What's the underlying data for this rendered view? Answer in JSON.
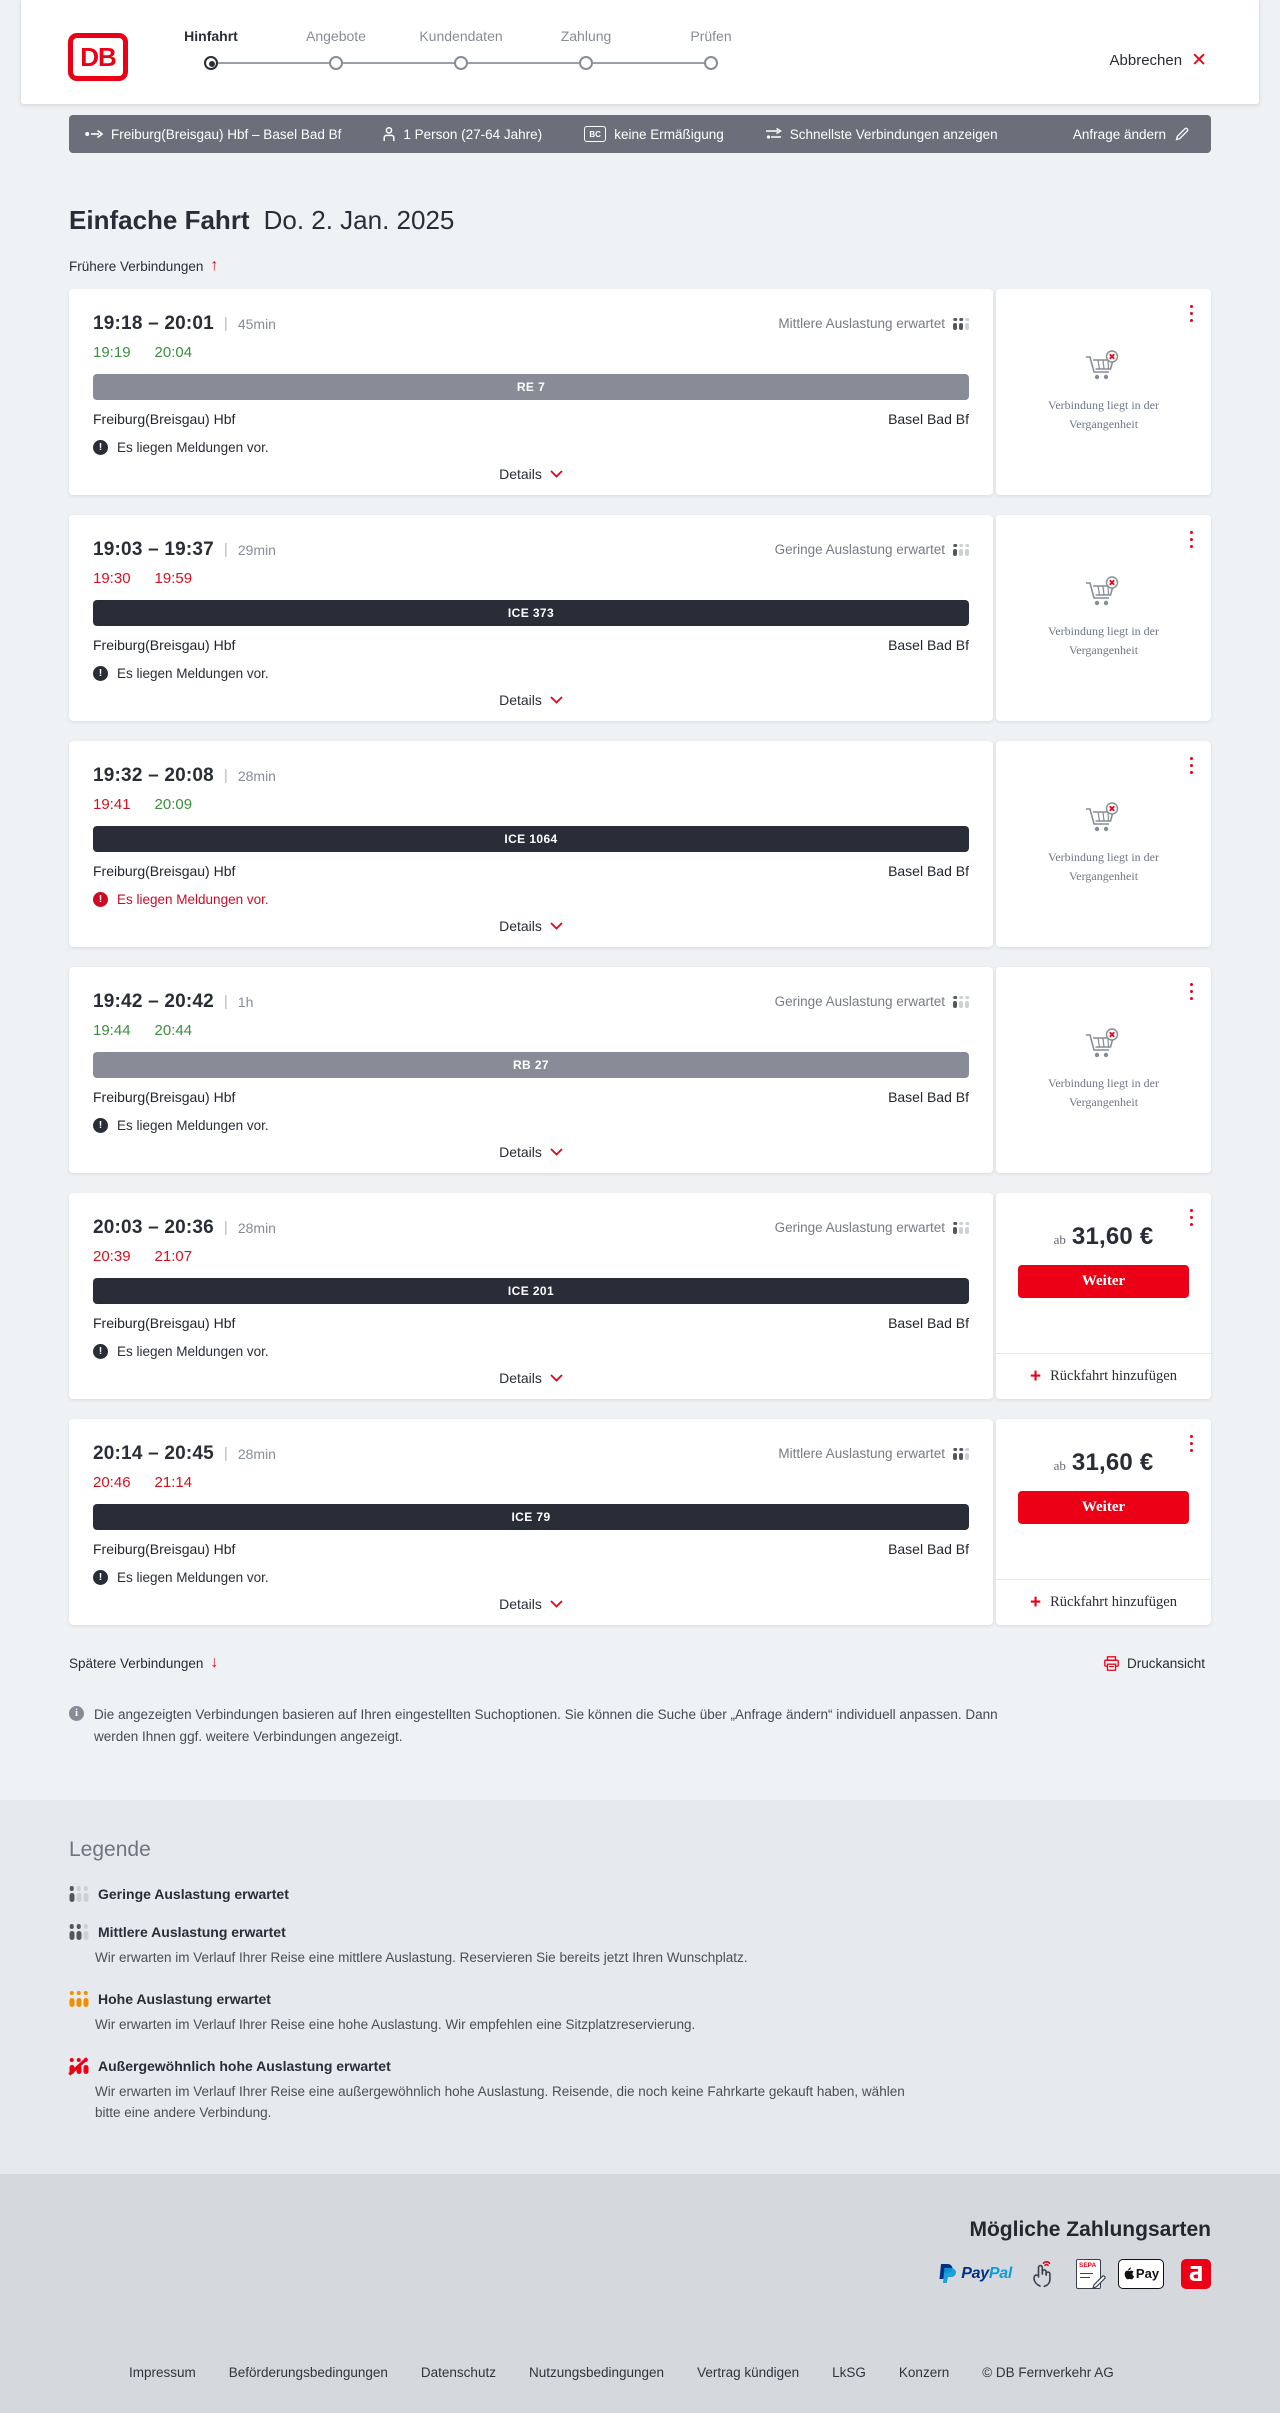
{
  "colors": {
    "brand_red": "#ec0016",
    "dark": "#282d37",
    "gray": "#878c96",
    "green": "#3b8f3e",
    "bar_regional": "#878c96",
    "bar_ice": "#282d37",
    "summary_bar": "#6a6f7a"
  },
  "header": {
    "logo": "DB",
    "steps": [
      {
        "label": "Hinfahrt",
        "active": true
      },
      {
        "label": "Angebote",
        "active": false
      },
      {
        "label": "Kundendaten",
        "active": false
      },
      {
        "label": "Zahlung",
        "active": false
      },
      {
        "label": "Prüfen",
        "active": false
      }
    ],
    "cancel": "Abbrechen"
  },
  "summary": {
    "route": "Freiburg(Breisgau) Hbf – Basel Bad Bf",
    "passengers": "1 Person (27-64 Jahre)",
    "discount": "keine Ermäßigung",
    "view": "Schnellste Verbindungen anzeigen",
    "edit": "Anfrage ändern"
  },
  "results": {
    "title": "Einfache Fahrt",
    "date": "Do. 2. Jan. 2025",
    "earlier": "Frühere Verbindungen",
    "later": "Spätere Verbindungen",
    "print": "Druckansicht",
    "note": "Die angezeigten Verbindungen basieren auf Ihren eingestellten Suchoptionen. Sie können die Suche über „Anfrage ändern“ individuell anpassen. Dann werden Ihnen ggf. weitere Verbindungen angezeigt."
  },
  "connections": [
    {
      "planned": "19:18 – 20:01",
      "duration": "45min",
      "occupancy": "Mittlere Auslastung erwartet",
      "occupancy_level": "medium",
      "dep": "19:19",
      "dep_status": "ontime",
      "arr": "20:04",
      "arr_status": "ontime",
      "train": "RE 7",
      "train_style": "regional",
      "from": "Freiburg(Breisgau) Hbf",
      "to": "Basel Bad Bf",
      "message": "Es liegen Meldungen vor.",
      "message_style": "dark",
      "details": "Details",
      "side": {
        "type": "past",
        "text": "Verbindung liegt in der Vergangenheit"
      }
    },
    {
      "planned": "19:03 – 19:37",
      "duration": "29min",
      "occupancy": "Geringe Auslastung erwartet",
      "occupancy_level": "low",
      "dep": "19:30",
      "dep_status": "delay",
      "arr": "19:59",
      "arr_status": "delay",
      "train": "ICE 373",
      "train_style": "ice",
      "from": "Freiburg(Breisgau) Hbf",
      "to": "Basel Bad Bf",
      "message": "Es liegen Meldungen vor.",
      "message_style": "dark",
      "details": "Details",
      "side": {
        "type": "past",
        "text": "Verbindung liegt in der Vergangenheit"
      }
    },
    {
      "planned": "19:32 – 20:08",
      "duration": "28min",
      "occupancy": "",
      "occupancy_level": "",
      "dep": "19:41",
      "dep_status": "delay",
      "arr": "20:09",
      "arr_status": "ontime",
      "train": "ICE 1064",
      "train_style": "ice",
      "from": "Freiburg(Breisgau) Hbf",
      "to": "Basel Bad Bf",
      "message": "Es liegen Meldungen vor.",
      "message_style": "red",
      "details": "Details",
      "side": {
        "type": "past",
        "text": "Verbindung liegt in der Vergangenheit"
      }
    },
    {
      "planned": "19:42 – 20:42",
      "duration": "1h",
      "occupancy": "Geringe Auslastung erwartet",
      "occupancy_level": "low",
      "dep": "19:44",
      "dep_status": "ontime",
      "arr": "20:44",
      "arr_status": "ontime",
      "train": "RB 27",
      "train_style": "regional",
      "from": "Freiburg(Breisgau) Hbf",
      "to": "Basel Bad Bf",
      "message": "Es liegen Meldungen vor.",
      "message_style": "dark",
      "details": "Details",
      "side": {
        "type": "past",
        "text": "Verbindung liegt in der Vergangenheit"
      }
    },
    {
      "planned": "20:03 – 20:36",
      "duration": "28min",
      "occupancy": "Geringe Auslastung erwartet",
      "occupancy_level": "low",
      "dep": "20:39",
      "dep_status": "delay",
      "arr": "21:07",
      "arr_status": "delay",
      "train": "ICE 201",
      "train_style": "ice",
      "from": "Freiburg(Breisgau) Hbf",
      "to": "Basel Bad Bf",
      "message": "Es liegen Meldungen vor.",
      "message_style": "dark",
      "details": "Details",
      "side": {
        "type": "price",
        "ab": "ab",
        "price": "31,60 €",
        "cta": "Weiter",
        "add_return": "Rückfahrt hinzufügen"
      }
    },
    {
      "planned": "20:14 – 20:45",
      "duration": "28min",
      "occupancy": "Mittlere Auslastung erwartet",
      "occupancy_level": "medium",
      "dep": "20:46",
      "dep_status": "delay",
      "arr": "21:14",
      "arr_status": "delay",
      "train": "ICE 79",
      "train_style": "ice",
      "from": "Freiburg(Breisgau) Hbf",
      "to": "Basel Bad Bf",
      "message": "Es liegen Meldungen vor.",
      "message_style": "dark",
      "details": "Details",
      "side": {
        "type": "price",
        "ab": "ab",
        "price": "31,60 €",
        "cta": "Weiter",
        "add_return": "Rückfahrt hinzufügen"
      }
    }
  ],
  "legend": {
    "heading": "Legende",
    "items": [
      {
        "label": "Geringe Auslastung erwartet",
        "level": "low",
        "description": ""
      },
      {
        "label": "Mittlere Auslastung erwartet",
        "level": "medium",
        "description": "Wir erwarten im Verlauf Ihrer Reise eine mittlere Auslastung. Reservieren Sie bereits jetzt Ihren Wunschplatz."
      },
      {
        "label": "Hohe Auslastung erwartet",
        "level": "high",
        "description": "Wir erwarten im Verlauf Ihrer Reise eine hohe Auslastung. Wir empfehlen eine Sitzplatzreservierung."
      },
      {
        "label": "Außergewöhnlich hohe Auslastung erwartet",
        "level": "very-high",
        "description": "Wir erwarten im Verlauf Ihrer Reise eine außergewöhnlich hohe Auslastung. Reisende, die noch keine Fahrkarte gekauft haben, wählen bitte eine andere Verbindung."
      }
    ]
  },
  "payments": {
    "heading": "Mögliche Zahlungsarten",
    "methods": [
      "paypal",
      "click-to-pay",
      "sepa-lastschrift",
      "apple-pay",
      "sofort"
    ],
    "labels": {
      "paypal_p1": "Pay",
      "paypal_p2": "Pal",
      "sepa": "SEPA",
      "apple": "Pay",
      "red_badge": "Ƌ"
    }
  },
  "icons": {
    "bahncard": "BC"
  },
  "footer": {
    "links": [
      "Impressum",
      "Beförderungsbedingungen",
      "Datenschutz",
      "Nutzungsbedingungen",
      "Vertrag kündigen",
      "LkSG",
      "Konzern",
      "© DB Fernverkehr AG"
    ]
  }
}
